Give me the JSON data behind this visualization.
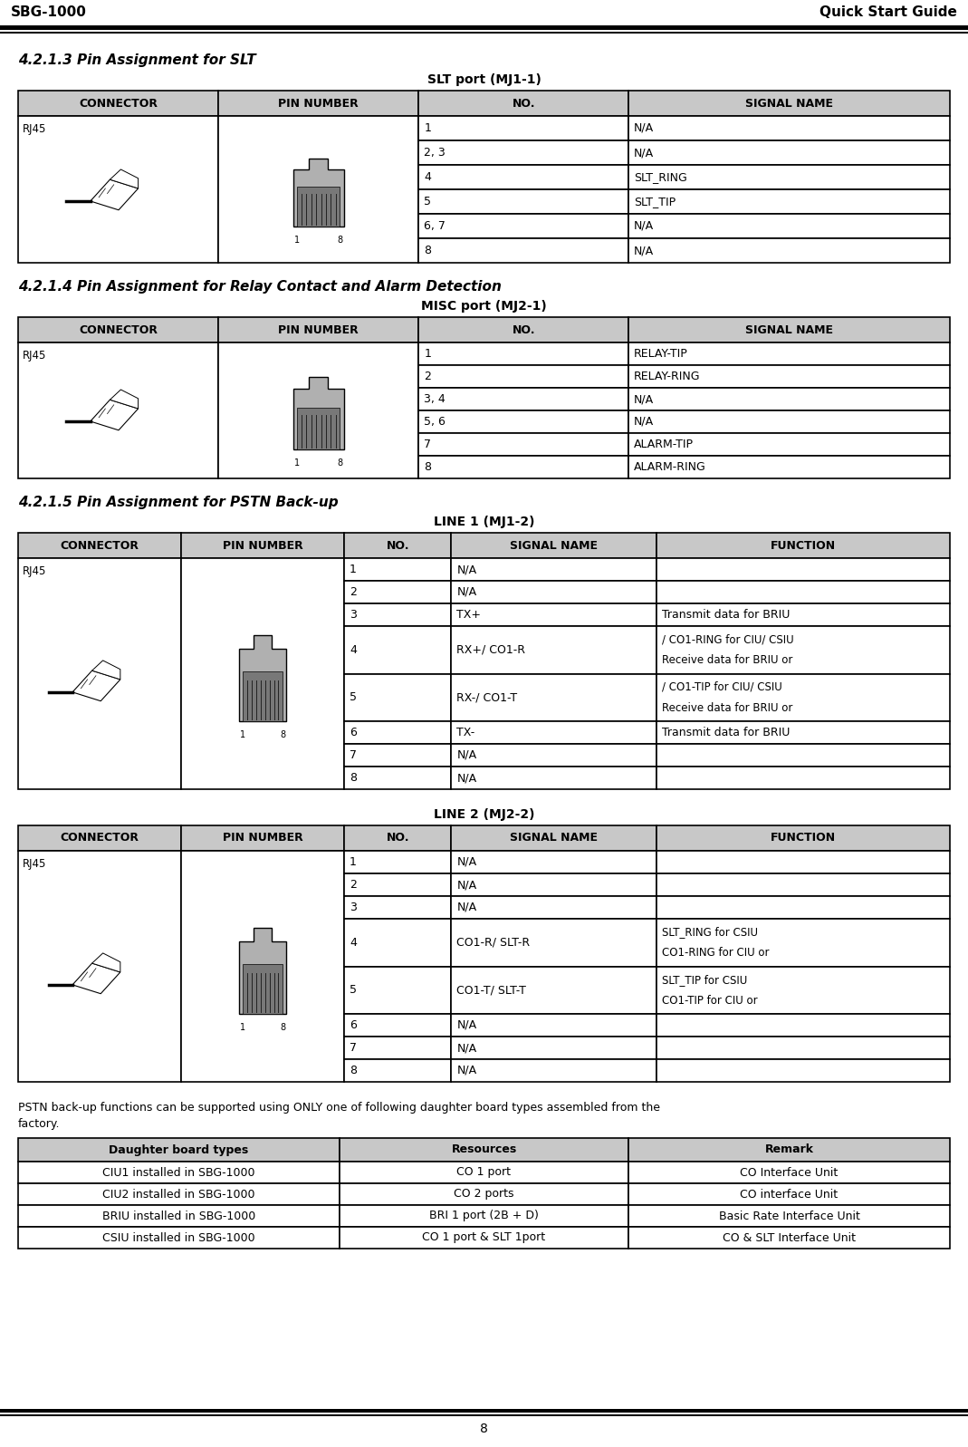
{
  "header_left": "SBG-1000",
  "header_right": "Quick Start Guide",
  "page_number": "8",
  "section_421_3_title": "4.2.1.3 Pin Assignment for SLT",
  "slt_table_title": "SLT port (MJ1-1)",
  "slt_headers": [
    "CONNECTOR",
    "PIN NUMBER",
    "NO.",
    "SIGNAL NAME"
  ],
  "slt_rows": [
    [
      "1",
      "N/A"
    ],
    [
      "2, 3",
      "N/A"
    ],
    [
      "4",
      "SLT_RING"
    ],
    [
      "5",
      "SLT_TIP"
    ],
    [
      "6, 7",
      "N/A"
    ],
    [
      "8",
      "N/A"
    ]
  ],
  "section_421_4_title": "4.2.1.4 Pin Assignment for Relay Contact and Alarm Detection",
  "misc_table_title": "MISC port (MJ2-1)",
  "misc_headers": [
    "CONNECTOR",
    "PIN NUMBER",
    "NO.",
    "SIGNAL NAME"
  ],
  "misc_rows": [
    [
      "1",
      "RELAY-TIP"
    ],
    [
      "2",
      "RELAY-RING"
    ],
    [
      "3, 4",
      "N/A"
    ],
    [
      "5, 6",
      "N/A"
    ],
    [
      "7",
      "ALARM-TIP"
    ],
    [
      "8",
      "ALARM-RING"
    ]
  ],
  "section_421_5_title": "4.2.1.5 Pin Assignment for PSTN Back-up",
  "line1_table_title": "LINE 1 (MJ1-2)",
  "line1_headers": [
    "CONNECTOR",
    "PIN NUMBER",
    "NO.",
    "SIGNAL NAME",
    "FUNCTION"
  ],
  "line1_rows": [
    [
      "1",
      "N/A",
      ""
    ],
    [
      "2",
      "N/A",
      ""
    ],
    [
      "3",
      "TX+",
      "Transmit data for BRIU"
    ],
    [
      "4",
      "RX+/ CO1-R",
      "Receive data for BRIU or\n/ CO1-RING for CIU/ CSIU"
    ],
    [
      "5",
      "RX-/ CO1-T",
      "Receive data for BRIU or\n/ CO1-TIP for CIU/ CSIU"
    ],
    [
      "6",
      "TX-",
      "Transmit data for BRIU"
    ],
    [
      "7",
      "N/A",
      ""
    ],
    [
      "8",
      "N/A",
      ""
    ]
  ],
  "line2_table_title": "LINE 2 (MJ2-2)",
  "line2_headers": [
    "CONNECTOR",
    "PIN NUMBER",
    "NO.",
    "SIGNAL NAME",
    "FUNCTION"
  ],
  "line2_rows": [
    [
      "1",
      "N/A",
      ""
    ],
    [
      "2",
      "N/A",
      ""
    ],
    [
      "3",
      "N/A",
      ""
    ],
    [
      "4",
      "CO1-R/ SLT-R",
      "CO1-RING for CIU or\nSLT_RING for CSIU"
    ],
    [
      "5",
      "CO1-T/ SLT-T",
      "CO1-TIP for CIU or\nSLT_TIP for CSIU"
    ],
    [
      "6",
      "N/A",
      ""
    ],
    [
      "7",
      "N/A",
      ""
    ],
    [
      "8",
      "N/A",
      ""
    ]
  ],
  "pstn_note_line1": "PSTN back-up functions can be supported using ONLY one of following daughter board types assembled from the",
  "pstn_note_line2": "factory.",
  "daughter_headers": [
    "Daughter board types",
    "Resources",
    "Remark"
  ],
  "daughter_rows": [
    [
      "CIU1 installed in SBG-1000",
      "CO 1 port",
      "CO Interface Unit"
    ],
    [
      "CIU2 installed in SBG-1000",
      "CO 2 ports",
      "CO interface Unit"
    ],
    [
      "BRIU installed in SBG-1000",
      "BRI 1 port (2B + D)",
      "Basic Rate Interface Unit"
    ],
    [
      "CSIU installed in SBG-1000",
      "CO 1 port & SLT 1port",
      "CO & SLT Interface Unit"
    ]
  ],
  "table_header_bg": "#c8c8c8",
  "table_border": "#000000",
  "bg_color": "#ffffff"
}
